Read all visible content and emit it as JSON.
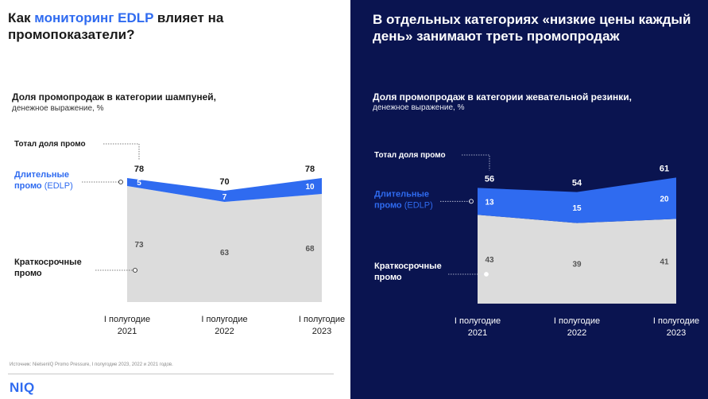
{
  "left": {
    "title_pre": "Как ",
    "title_accent": "мониторинг EDLP",
    "title_post": " влияет на промопоказатели?",
    "subtitle": "Доля промопродаж в категории шампуней,",
    "subnote": "денежное выражение, %",
    "source": "Источник: NielsenIQ Promo Pressure, I полугодие 2023, 2022 и 2021 годов.",
    "logo": "NIQ"
  },
  "right": {
    "title": "В отдельных категориях «низкие цены каждый день» занимают треть промопродаж",
    "subtitle": "Доля промопродаж в категории жевательной резинки,",
    "subnote": "денежное выражение, %"
  },
  "colors": {
    "left_bg": "#ffffff",
    "right_bg": "#0a1450",
    "edlp": "#2f6bf0",
    "short_promo": "#dcdcdc",
    "accent": "#2f6bf0"
  },
  "chart_data": [
    {
      "type": "area",
      "categories": [
        [
          "I полугодие",
          "2021"
        ],
        [
          "I полугодие",
          "2022"
        ],
        [
          "I полугодие",
          "2023"
        ]
      ],
      "totals": [
        78,
        70,
        78
      ],
      "series": [
        {
          "values": [
            73,
            63,
            68
          ]
        },
        {
          "values": [
            5,
            7,
            10
          ]
        }
      ],
      "legend": {
        "total": "Тотал доля промо",
        "edlp_line1": "Длительные",
        "edlp_line2a": "промо",
        "edlp_line2b": " (EDLP)",
        "short_line1": "Краткосрочные",
        "short_line2": "промо"
      },
      "stacked": true,
      "ylim": [
        0,
        85
      ],
      "grid": false
    },
    {
      "type": "area",
      "categories": [
        [
          "I полугодие",
          "2021"
        ],
        [
          "I полугодие",
          "2022"
        ],
        [
          "I полугодие",
          "2023"
        ]
      ],
      "totals": [
        56,
        54,
        61
      ],
      "series": [
        {
          "values": [
            43,
            39,
            41
          ]
        },
        {
          "values": [
            13,
            15,
            20
          ]
        }
      ],
      "legend": {
        "total": "Тотал доля промо",
        "edlp_line1": "Длительные",
        "edlp_line2a": "промо",
        "edlp_line2b": " (EDLP)",
        "short_line1": "Краткосрочные",
        "short_line2": "промо"
      },
      "stacked": true,
      "ylim": [
        0,
        65
      ],
      "grid": false
    }
  ]
}
